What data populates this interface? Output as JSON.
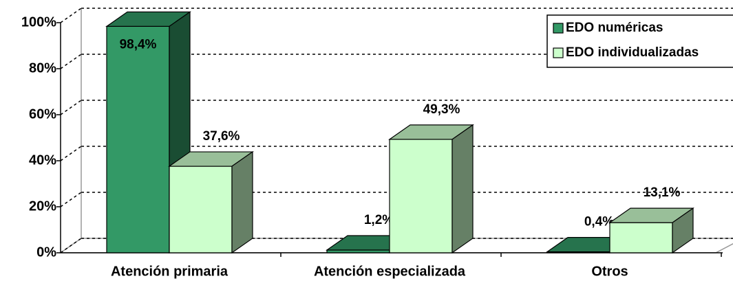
{
  "chart_data": {
    "type": "bar3d",
    "categories": [
      "Atención primaria",
      "Atención especializada",
      "Otros"
    ],
    "series": [
      {
        "name": "EDO numéricas",
        "color": "#339966",
        "values": [
          98.4,
          1.2,
          0.4
        ],
        "value_labels": [
          "98,4%",
          "1,2%",
          "0,4%"
        ]
      },
      {
        "name": "EDO individualizadas",
        "color": "#ccffcc",
        "values": [
          37.6,
          49.3,
          13.1
        ],
        "value_labels": [
          "37,6%",
          "49,3%",
          "13,1%"
        ]
      }
    ],
    "ylim": [
      0,
      100
    ],
    "yticks": [
      {
        "value": 0,
        "label": "0%"
      },
      {
        "value": 20,
        "label": "20%"
      },
      {
        "value": 40,
        "label": "40%"
      },
      {
        "value": 60,
        "label": "60%"
      },
      {
        "value": 80,
        "label": "80%"
      },
      {
        "value": 100,
        "label": "100%"
      }
    ],
    "grid": true,
    "legend": "upper right"
  }
}
